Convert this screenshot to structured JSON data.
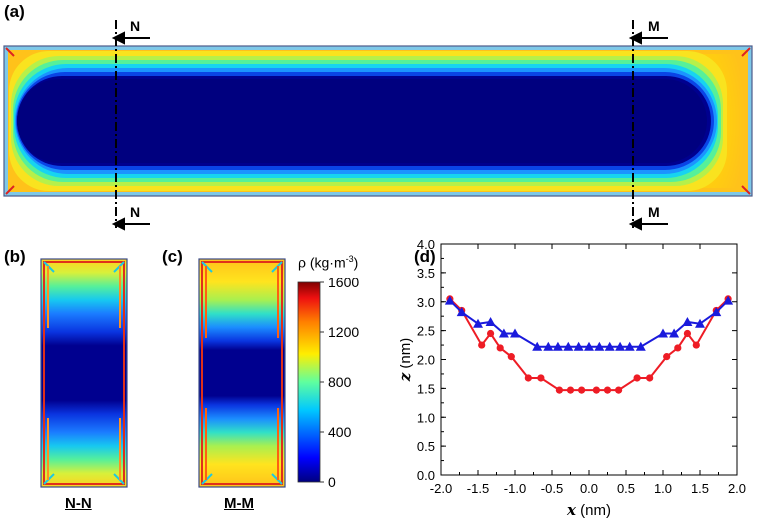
{
  "panels": {
    "a": "(a)",
    "b": "(b)",
    "c": "(c)",
    "d": "(d)"
  },
  "sections": {
    "n_label": "N",
    "m_label": "M",
    "nn_caption": "N-N",
    "mm_caption": "M-M"
  },
  "colorbar": {
    "title_prefix": "ρ (kg·m",
    "title_exp": "-3",
    "title_suffix": ")",
    "ticks": [
      "1600",
      "1200",
      "800",
      "400",
      "0"
    ],
    "min": 0,
    "max": 1600
  },
  "colors": {
    "red_series": "#ee1c25",
    "blue_series": "#1a1adc",
    "dark_blue": "#00008f",
    "yellow": "#ffd21e"
  },
  "chart_data": {
    "type": "line",
    "xlabel": "x",
    "xunit": " (nm)",
    "ylabel": "z",
    "yunit": " (nm)",
    "xlim": [
      -2.0,
      2.0
    ],
    "ylim": [
      0.0,
      4.0
    ],
    "xticks": [
      "-2.0",
      "-1.5",
      "-1.0",
      "-0.5",
      "0.0",
      "0.5",
      "1.0",
      "1.5",
      "2.0"
    ],
    "yticks": [
      "0.0",
      "0.5",
      "1.0",
      "1.5",
      "2.0",
      "2.5",
      "3.0",
      "3.5",
      "4.0"
    ],
    "series": [
      {
        "name": "red",
        "marker": "circle",
        "x": [
          -1.88,
          -1.72,
          -1.45,
          -1.33,
          -1.2,
          -1.05,
          -0.82,
          -0.65,
          -0.4,
          -0.25,
          -0.1,
          0.1,
          0.25,
          0.4,
          0.65,
          0.82,
          1.05,
          1.2,
          1.33,
          1.45,
          1.72,
          1.88
        ],
        "y": [
          3.05,
          2.85,
          2.25,
          2.45,
          2.2,
          2.05,
          1.68,
          1.68,
          1.47,
          1.47,
          1.47,
          1.47,
          1.47,
          1.47,
          1.68,
          1.68,
          2.05,
          2.2,
          2.45,
          2.25,
          2.85,
          3.05
        ]
      },
      {
        "name": "blue",
        "marker": "triangle",
        "x": [
          -1.88,
          -1.72,
          -1.5,
          -1.33,
          -1.15,
          -1.0,
          -0.7,
          -0.55,
          -0.42,
          -0.28,
          -0.14,
          0.0,
          0.14,
          0.28,
          0.42,
          0.55,
          0.7,
          1.0,
          1.15,
          1.33,
          1.5,
          1.72,
          1.88
        ],
        "y": [
          3.02,
          2.82,
          2.62,
          2.65,
          2.45,
          2.45,
          2.22,
          2.22,
          2.22,
          2.22,
          2.22,
          2.22,
          2.22,
          2.22,
          2.22,
          2.22,
          2.22,
          2.45,
          2.45,
          2.65,
          2.62,
          2.82,
          3.02
        ]
      }
    ]
  }
}
